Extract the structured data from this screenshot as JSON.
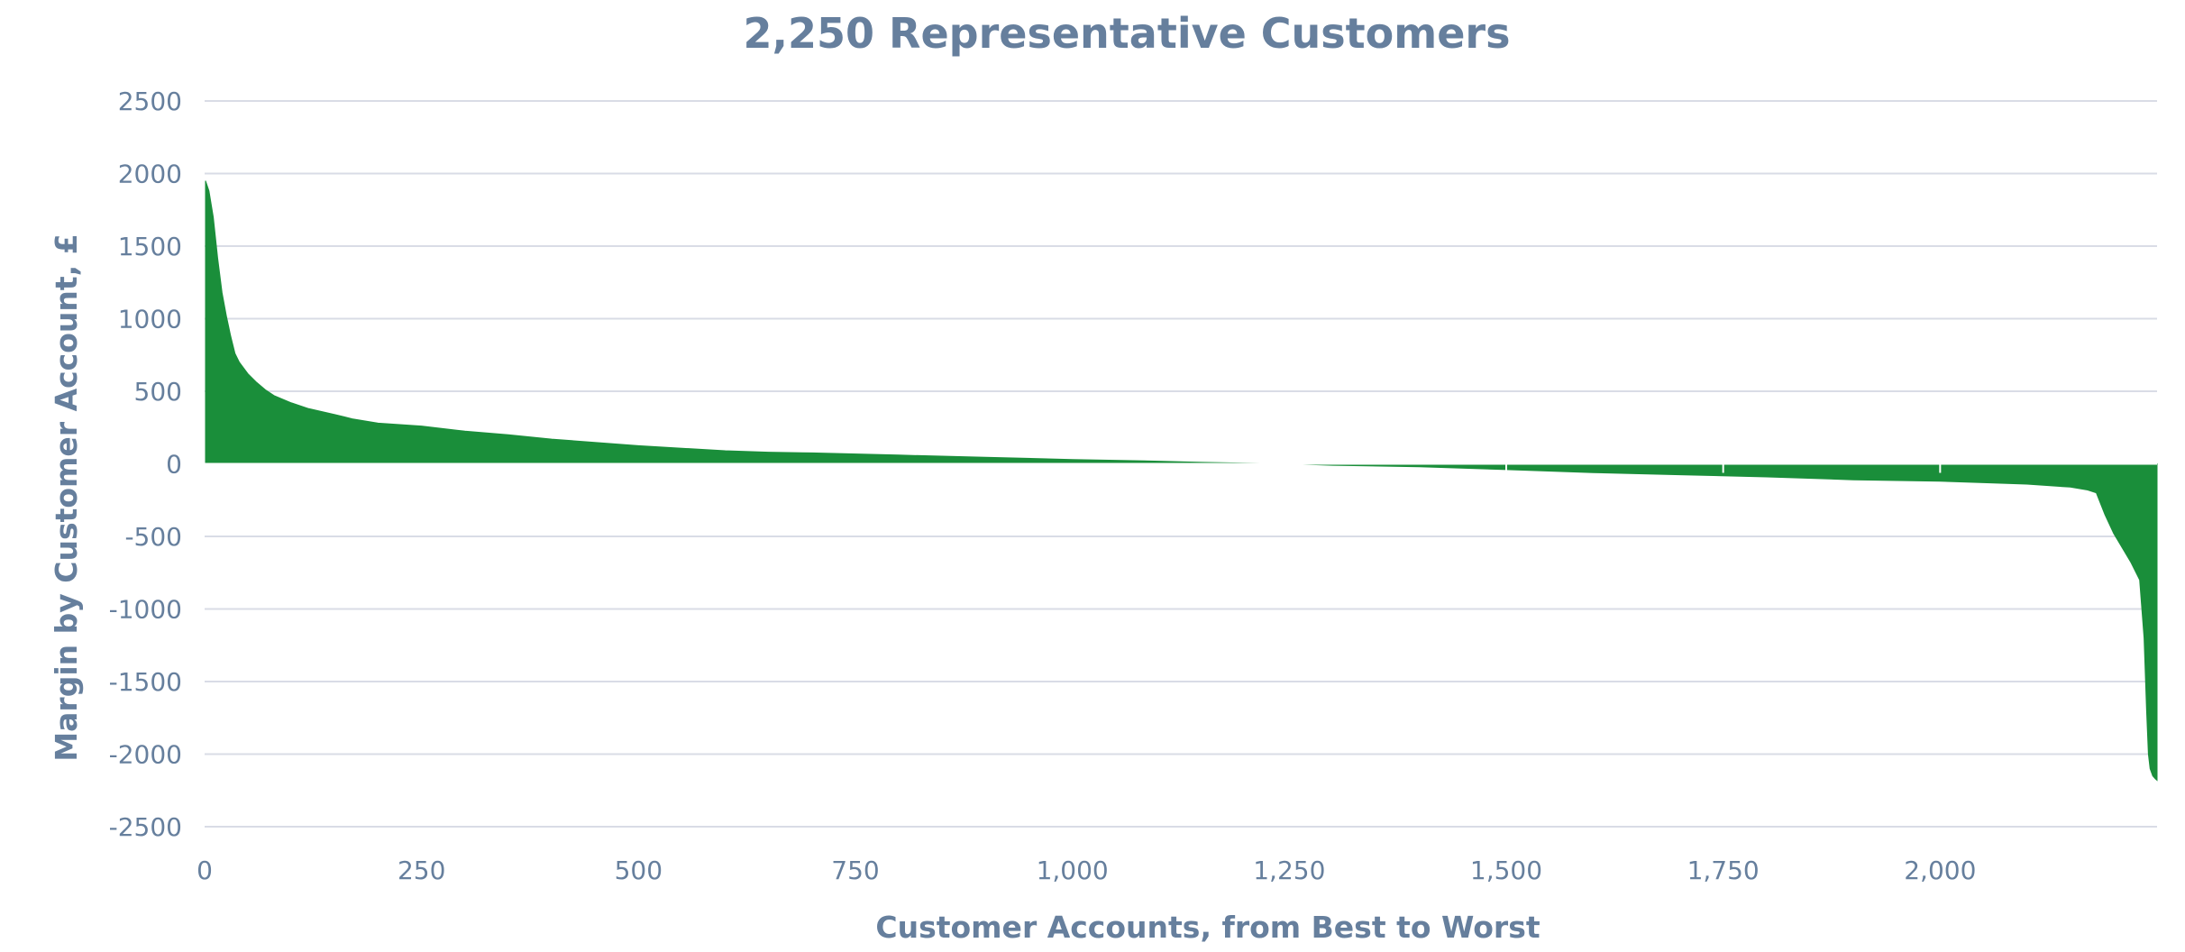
{
  "colors": {
    "text": "#667F9D",
    "grid": "#D9DCE6",
    "area_fill": "#1A8E3A",
    "zero_line": "#FFFFFF",
    "background": "#FFFFFF"
  },
  "chart_data": {
    "type": "area",
    "title": "2,250 Representative Customers",
    "xlabel": "Customer Accounts, from Best to Worst",
    "ylabel": "Margin by Customer Account, £",
    "xlim": [
      0,
      2250
    ],
    "ylim": [
      -2500,
      2500
    ],
    "grid": true,
    "legend": "none",
    "x_ticks": [
      {
        "value": 0,
        "label": "0"
      },
      {
        "value": 250,
        "label": "250"
      },
      {
        "value": 500,
        "label": "500"
      },
      {
        "value": 750,
        "label": "750"
      },
      {
        "value": 1000,
        "label": "1,000"
      },
      {
        "value": 1250,
        "label": "1,250"
      },
      {
        "value": 1500,
        "label": "1,500"
      },
      {
        "value": 1750,
        "label": "1,750"
      },
      {
        "value": 2000,
        "label": "2,000"
      }
    ],
    "y_ticks": [
      {
        "value": 2500,
        "label": "2500"
      },
      {
        "value": 2000,
        "label": "2000"
      },
      {
        "value": 1500,
        "label": "1500"
      },
      {
        "value": 1000,
        "label": "1000"
      },
      {
        "value": 500,
        "label": "500"
      },
      {
        "value": 0,
        "label": "0"
      },
      {
        "value": -500,
        "label": "-500"
      },
      {
        "value": -1000,
        "label": "-1000"
      },
      {
        "value": -1500,
        "label": "-1500"
      },
      {
        "value": -2000,
        "label": "-2000"
      },
      {
        "value": -2500,
        "label": "-2500"
      }
    ],
    "series": [
      {
        "x": [
          1,
          5,
          10,
          15,
          20,
          25,
          30,
          35,
          40,
          50,
          60,
          70,
          80,
          100,
          120,
          150,
          170,
          200,
          250,
          300,
          350,
          400,
          500,
          600,
          650,
          700,
          800,
          900,
          1000,
          1100,
          1150,
          1200,
          1250,
          1300,
          1400,
          1500,
          1600,
          1700,
          1800,
          1900,
          2000,
          2050,
          2100,
          2150,
          2170,
          2180,
          2190,
          2200,
          2210,
          2220,
          2230,
          2235,
          2238,
          2240,
          2242,
          2245,
          2248,
          2250
        ],
        "values": [
          1950,
          1880,
          1700,
          1420,
          1180,
          1020,
          880,
          760,
          700,
          620,
          560,
          510,
          470,
          420,
          380,
          340,
          310,
          280,
          260,
          225,
          200,
          170,
          125,
          90,
          80,
          75,
          60,
          45,
          30,
          18,
          10,
          5,
          0,
          -10,
          -20,
          -40,
          -60,
          -75,
          -90,
          -110,
          -120,
          -130,
          -140,
          -160,
          -180,
          -200,
          -350,
          -480,
          -580,
          -680,
          -800,
          -1200,
          -1700,
          -2000,
          -2100,
          -2150,
          -2170,
          -2180
        ]
      }
    ]
  }
}
